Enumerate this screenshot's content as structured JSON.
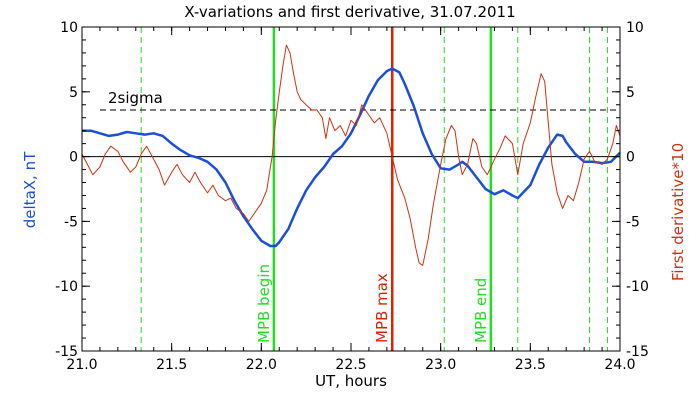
{
  "chart_data": {
    "type": "line",
    "title": "X-variations and first derivative, 31.07.2011",
    "xlabel": "UT, hours",
    "ylabel_left": "deltaX, nT",
    "ylabel_right": "First derivative*10",
    "xlim": [
      21.0,
      24.0
    ],
    "ylim_left": [
      -15,
      10
    ],
    "ylim_right": [
      -15,
      10
    ],
    "x_ticks": [
      "21.0",
      "21.5",
      "22.0",
      "22.5",
      "23.0",
      "23.5",
      "24.0"
    ],
    "y_ticks_left": [
      "10",
      "5",
      "0",
      "-5",
      "-10",
      "-15"
    ],
    "y_ticks_right": [
      "10",
      "5",
      "0",
      "-5",
      "-10",
      "-15"
    ],
    "colors": {
      "deltaX": "#1a4fd6",
      "derivative": "#cc3311",
      "mpb_markers": "#22dd22",
      "mpb_max_marker": "#dd2200",
      "reference": "#000000",
      "left_label": "#1a4fd6",
      "right_label": "#cc3311"
    },
    "threshold": {
      "label": "2sigma",
      "value": 3.6,
      "style": "dashed"
    },
    "zero_line": {
      "value": 0,
      "style": "solid"
    },
    "vertical_markers": [
      {
        "x": 22.07,
        "label": "MPB begin",
        "color": "#22dd22",
        "style": "solid"
      },
      {
        "x": 22.73,
        "label": "MPB max",
        "color": "#dd2200",
        "style": "solid"
      },
      {
        "x": 23.28,
        "label": "MPB end",
        "color": "#22dd22",
        "style": "solid"
      }
    ],
    "dashed_markers": [
      21.33,
      23.02,
      23.43,
      23.83,
      23.93
    ],
    "series": [
      {
        "name": "deltaX",
        "axis": "left",
        "points": [
          [
            21.0,
            2.0
          ],
          [
            21.05,
            2.0
          ],
          [
            21.1,
            1.8
          ],
          [
            21.15,
            1.6
          ],
          [
            21.2,
            1.7
          ],
          [
            21.25,
            1.9
          ],
          [
            21.3,
            1.8
          ],
          [
            21.35,
            1.7
          ],
          [
            21.4,
            1.8
          ],
          [
            21.45,
            1.6
          ],
          [
            21.5,
            1.0
          ],
          [
            21.55,
            0.5
          ],
          [
            21.6,
            0.1
          ],
          [
            21.65,
            -0.1
          ],
          [
            21.7,
            -0.4
          ],
          [
            21.75,
            -1.0
          ],
          [
            21.8,
            -2.0
          ],
          [
            21.85,
            -3.4
          ],
          [
            21.9,
            -4.6
          ],
          [
            21.95,
            -5.6
          ],
          [
            22.0,
            -6.5
          ],
          [
            22.05,
            -6.9
          ],
          [
            22.08,
            -6.9
          ],
          [
            22.1,
            -6.6
          ],
          [
            22.15,
            -5.6
          ],
          [
            22.2,
            -4.0
          ],
          [
            22.25,
            -2.6
          ],
          [
            22.3,
            -1.6
          ],
          [
            22.35,
            -0.8
          ],
          [
            22.4,
            0.2
          ],
          [
            22.45,
            0.8
          ],
          [
            22.5,
            1.8
          ],
          [
            22.55,
            3.2
          ],
          [
            22.6,
            4.7
          ],
          [
            22.65,
            5.9
          ],
          [
            22.7,
            6.6
          ],
          [
            22.73,
            6.8
          ],
          [
            22.77,
            6.5
          ],
          [
            22.8,
            5.6
          ],
          [
            22.85,
            3.9
          ],
          [
            22.9,
            1.8
          ],
          [
            22.95,
            0.2
          ],
          [
            23.0,
            -0.9
          ],
          [
            23.05,
            -1.0
          ],
          [
            23.1,
            -0.6
          ],
          [
            23.12,
            -0.4
          ],
          [
            23.15,
            -0.7
          ],
          [
            23.2,
            -1.6
          ],
          [
            23.25,
            -2.5
          ],
          [
            23.3,
            -2.9
          ],
          [
            23.35,
            -2.6
          ],
          [
            23.4,
            -3.0
          ],
          [
            23.43,
            -3.2
          ],
          [
            23.5,
            -2.2
          ],
          [
            23.55,
            -0.6
          ],
          [
            23.6,
            0.7
          ],
          [
            23.65,
            1.7
          ],
          [
            23.68,
            1.6
          ],
          [
            23.7,
            1.1
          ],
          [
            23.75,
            0.2
          ],
          [
            23.8,
            -0.4
          ],
          [
            23.85,
            -0.4
          ],
          [
            23.9,
            -0.5
          ],
          [
            23.95,
            -0.4
          ],
          [
            24.0,
            0.3
          ]
        ]
      },
      {
        "name": "First derivative*10",
        "axis": "right",
        "points": [
          [
            21.0,
            0.2
          ],
          [
            21.03,
            -0.6
          ],
          [
            21.06,
            -1.4
          ],
          [
            21.1,
            -0.8
          ],
          [
            21.13,
            0.2
          ],
          [
            21.16,
            0.8
          ],
          [
            21.2,
            0.4
          ],
          [
            21.23,
            -0.4
          ],
          [
            21.27,
            -1.2
          ],
          [
            21.3,
            -0.8
          ],
          [
            21.33,
            0.2
          ],
          [
            21.36,
            0.8
          ],
          [
            21.4,
            -0.2
          ],
          [
            21.43,
            -1.0
          ],
          [
            21.46,
            -2.2
          ],
          [
            21.5,
            -1.2
          ],
          [
            21.53,
            -0.6
          ],
          [
            21.56,
            -1.4
          ],
          [
            21.6,
            -2.0
          ],
          [
            21.63,
            -1.2
          ],
          [
            21.66,
            -2.0
          ],
          [
            21.7,
            -2.8
          ],
          [
            21.73,
            -2.2
          ],
          [
            21.76,
            -3.0
          ],
          [
            21.8,
            -3.4
          ],
          [
            21.83,
            -3.2
          ],
          [
            21.86,
            -4.0
          ],
          [
            21.9,
            -4.4
          ],
          [
            21.93,
            -5.0
          ],
          [
            21.96,
            -4.4
          ],
          [
            22.0,
            -3.6
          ],
          [
            22.03,
            -2.6
          ],
          [
            22.06,
            0.0
          ],
          [
            22.08,
            2.8
          ],
          [
            22.1,
            5.0
          ],
          [
            22.12,
            7.0
          ],
          [
            22.14,
            8.6
          ],
          [
            22.16,
            8.0
          ],
          [
            22.18,
            6.4
          ],
          [
            22.2,
            5.0
          ],
          [
            22.22,
            4.4
          ],
          [
            22.25,
            4.0
          ],
          [
            22.28,
            3.6
          ],
          [
            22.31,
            3.6
          ],
          [
            22.34,
            3.0
          ],
          [
            22.36,
            1.4
          ],
          [
            22.38,
            3.0
          ],
          [
            22.41,
            2.0
          ],
          [
            22.44,
            2.4
          ],
          [
            22.47,
            1.6
          ],
          [
            22.5,
            2.8
          ],
          [
            22.53,
            2.4
          ],
          [
            22.56,
            4.0
          ],
          [
            22.6,
            3.2
          ],
          [
            22.63,
            2.6
          ],
          [
            22.66,
            3.0
          ],
          [
            22.7,
            1.8
          ],
          [
            22.73,
            0.0
          ],
          [
            22.76,
            -1.8
          ],
          [
            22.8,
            -3.2
          ],
          [
            22.83,
            -4.8
          ],
          [
            22.86,
            -7.0
          ],
          [
            22.88,
            -8.2
          ],
          [
            22.9,
            -8.4
          ],
          [
            22.93,
            -6.4
          ],
          [
            22.96,
            -3.6
          ],
          [
            23.0,
            -0.6
          ],
          [
            23.03,
            1.4
          ],
          [
            23.06,
            2.4
          ],
          [
            23.08,
            2.0
          ],
          [
            23.1,
            0.0
          ],
          [
            23.12,
            -1.4
          ],
          [
            23.15,
            -0.6
          ],
          [
            23.18,
            1.4
          ],
          [
            23.2,
            1.0
          ],
          [
            23.23,
            -0.8
          ],
          [
            23.26,
            -1.4
          ],
          [
            23.3,
            -0.2
          ],
          [
            23.33,
            0.6
          ],
          [
            23.36,
            1.6
          ],
          [
            23.4,
            1.0
          ],
          [
            23.43,
            -1.4
          ],
          [
            23.46,
            1.0
          ],
          [
            23.5,
            2.6
          ],
          [
            23.53,
            4.6
          ],
          [
            23.56,
            6.4
          ],
          [
            23.58,
            5.8
          ],
          [
            23.6,
            2.6
          ],
          [
            23.62,
            -0.6
          ],
          [
            23.65,
            -2.8
          ],
          [
            23.68,
            -4.0
          ],
          [
            23.71,
            -3.0
          ],
          [
            23.74,
            -3.4
          ],
          [
            23.77,
            -2.0
          ],
          [
            23.8,
            -0.2
          ],
          [
            23.83,
            0.4
          ],
          [
            23.86,
            -0.4
          ],
          [
            23.9,
            -0.6
          ],
          [
            23.93,
            -0.2
          ],
          [
            23.96,
            1.0
          ],
          [
            23.98,
            2.4
          ],
          [
            24.0,
            1.6
          ]
        ]
      }
    ]
  }
}
